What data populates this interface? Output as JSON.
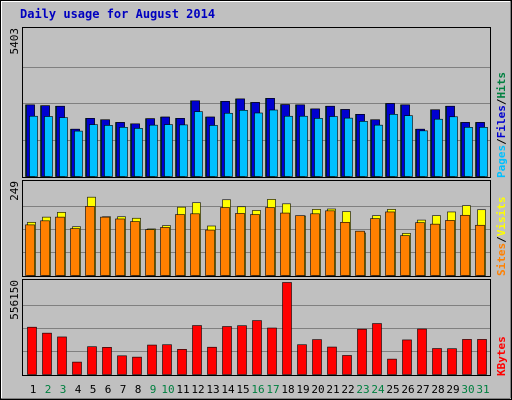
{
  "chart_data": {
    "type": "bar",
    "title": "Daily usage for August 2014",
    "categories": [
      "1",
      "2",
      "3",
      "4",
      "5",
      "6",
      "7",
      "8",
      "9",
      "10",
      "11",
      "12",
      "13",
      "14",
      "15",
      "16",
      "17",
      "18",
      "19",
      "20",
      "21",
      "22",
      "23",
      "24",
      "25",
      "26",
      "27",
      "28",
      "29",
      "30",
      "31"
    ],
    "weekend_categories": [
      "2",
      "3",
      "9",
      "10",
      "16",
      "17",
      "23",
      "24",
      "30",
      "31"
    ],
    "panels": [
      {
        "name": "hits-files-pages",
        "ymax": 5403,
        "ymax_label": "5403",
        "side_label": [
          "Pages",
          "Files",
          "Hits"
        ],
        "series": [
          {
            "name": "Hits",
            "color": "#008040",
            "values": [
              2650,
              2620,
              2600,
              1750,
              2150,
              2100,
              2000,
              1950,
              2140,
              2200,
              2150,
              2800,
              2200,
              2780,
              2870,
              2740,
              2890,
              2660,
              2650,
              2500,
              2600,
              2480,
              2300,
              2100,
              2700,
              2650,
              1750,
              2470,
              2600,
              2000,
              2000
            ]
          },
          {
            "name": "Files",
            "color": "#0000d0",
            "values": [
              2650,
              2620,
              2600,
              1750,
              2150,
              2100,
              2000,
              1950,
              2140,
              2200,
              2150,
              2800,
              2200,
              2780,
              2870,
              2740,
              2890,
              2660,
              2650,
              2500,
              2600,
              2480,
              2300,
              2100,
              2700,
              2650,
              1750,
              2470,
              2600,
              2000,
              2000
            ]
          },
          {
            "name": "Pages",
            "color": "#00c0ff",
            "values": [
              2230,
              2220,
              2180,
              1680,
              1920,
              1890,
              1820,
              1780,
              1900,
              1920,
              1910,
              2400,
              1890,
              2340,
              2450,
              2350,
              2460,
              2230,
              2230,
              2150,
              2220,
              2160,
              2040,
              1900,
              2300,
              2250,
              1690,
              2120,
              2210,
              1820,
              1820
            ]
          }
        ]
      },
      {
        "name": "visits-sites",
        "ymax": 249,
        "ymax_label": "249",
        "side_label": [
          "Sites",
          "Visits"
        ],
        "series": [
          {
            "name": "Visits",
            "color": "#ffff00",
            "values": [
              144,
              158,
              171,
              132,
              212,
              159,
              159,
              155,
              126,
              135,
              185,
              197,
              134,
              205,
              186,
              176,
              206,
              194,
              161,
              179,
              180,
              173,
              115,
              162,
              179,
              114,
              150,
              162,
              172,
              189,
              178
            ]
          },
          {
            "name": "Sites",
            "color": "#ff8000",
            "values": [
              137,
              148,
              158,
              127,
              187,
              158,
              153,
              146,
              124,
              130,
              165,
              167,
              123,
              184,
              168,
              165,
              184,
              169,
              162,
              167,
              175,
              144,
              120,
              154,
              172,
              108,
              143,
              139,
              149,
              163,
              136
            ]
          }
        ]
      },
      {
        "name": "kbytes",
        "ymax": 556150,
        "ymax_label": "556150",
        "side_label": [
          "KBytes"
        ],
        "series": [
          {
            "name": "KBytes",
            "color": "#ff0000",
            "values": [
              286000,
              250000,
              227000,
              75000,
              168000,
              164000,
              113000,
              105000,
              178000,
              180000,
              152000,
              296000,
              165000,
              290000,
              295000,
              326000,
              281000,
              556150,
              180000,
              211000,
              166000,
              115000,
              274000,
              308000,
              93000,
              209000,
              275000,
              157000,
              156000,
              212000,
              212000
            ]
          }
        ]
      }
    ],
    "colors": {
      "background": "#c0c0c0",
      "title": "#0000c0",
      "gridline": "#808080",
      "weekday_label": "#000000",
      "weekend_label": "#008040"
    },
    "grid": true,
    "legend": "right-vertical"
  }
}
